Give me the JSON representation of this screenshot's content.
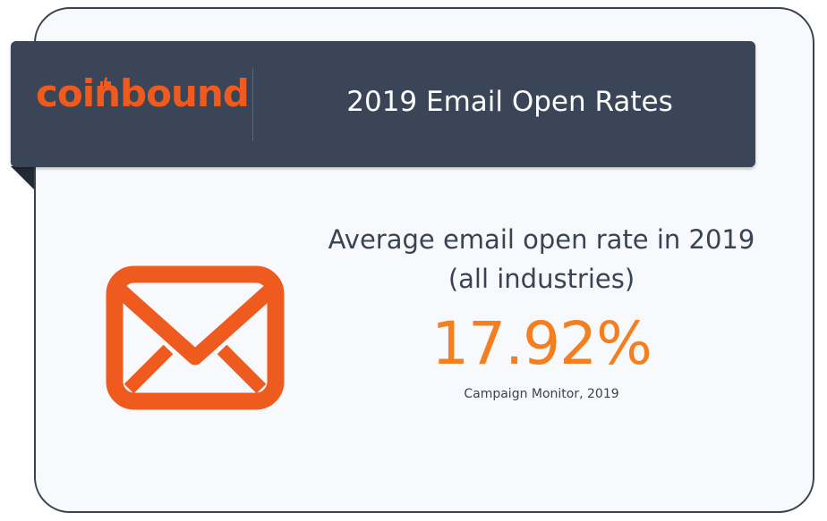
{
  "header": {
    "logo_text": "coinbound",
    "title": "2019 Email Open Rates"
  },
  "main": {
    "headline_line1": "Average email open rate in 2019",
    "headline_line2": "(all industries)",
    "stat_value": "17.92%",
    "source": "Campaign Monitor, 2019",
    "icon": "envelope-icon"
  },
  "colors": {
    "banner": "#3a4557",
    "accent_orange": "#ef5a1e",
    "stat_orange": "#f57e1f",
    "text_dark": "#3a4352",
    "card_bg": "#f7f9fc"
  }
}
